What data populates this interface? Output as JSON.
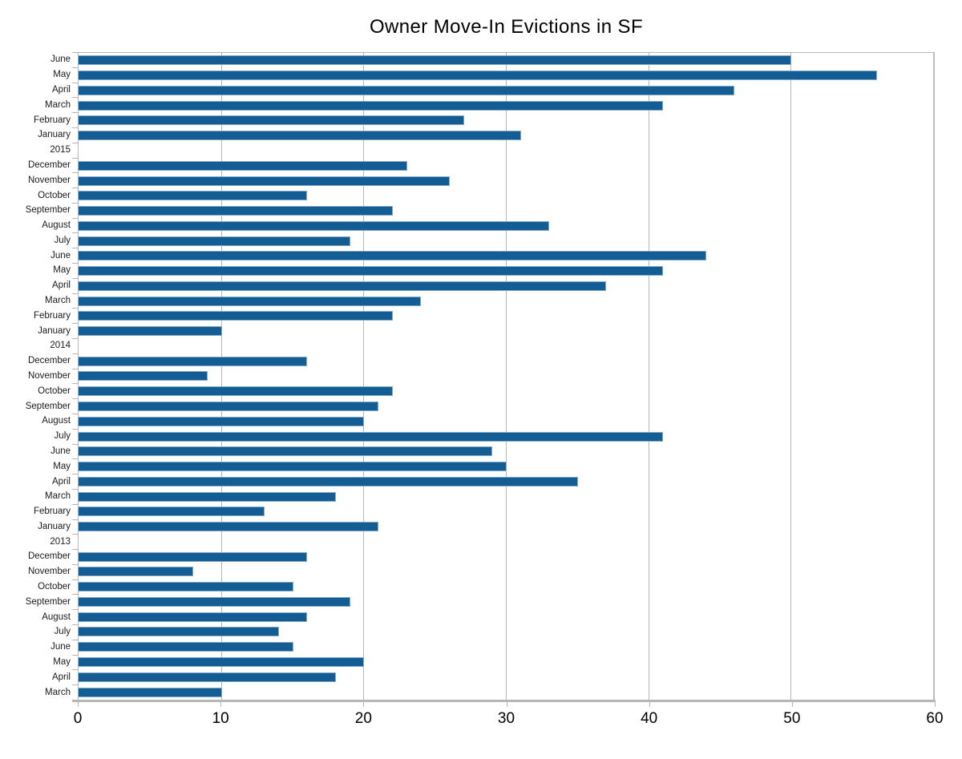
{
  "chart_data": {
    "type": "bar",
    "orientation": "horizontal",
    "title": "Owner Move-In Evictions in SF",
    "xlabel": "",
    "ylabel": "",
    "xlim": [
      0,
      60
    ],
    "x_ticks": [
      0,
      10,
      20,
      30,
      40,
      50,
      60
    ],
    "grid": "vertical gridlines at x ticks",
    "legend": "none",
    "bar_color": "#135d94",
    "bar_border_color": "#7fa8c9",
    "axis_color": "#b6b6b6",
    "categories": [
      "June",
      "May",
      "April",
      "March",
      "February",
      "January",
      "2015",
      "December",
      "November",
      "October",
      "September",
      "August",
      "July",
      "June",
      "May",
      "April",
      "March",
      "February",
      "January",
      "2014",
      "December",
      "November",
      "October",
      "September",
      "August",
      "July",
      "June",
      "May",
      "April",
      "March",
      "February",
      "January",
      "2013",
      "December",
      "November",
      "October",
      "September",
      "August",
      "July",
      "June",
      "May",
      "April",
      "March"
    ],
    "values": [
      50,
      56,
      46,
      41,
      27,
      31,
      null,
      23,
      26,
      16,
      22,
      33,
      19,
      44,
      41,
      37,
      24,
      22,
      10,
      null,
      16,
      9,
      22,
      21,
      20,
      41,
      29,
      30,
      35,
      18,
      13,
      21,
      null,
      16,
      8,
      15,
      19,
      16,
      14,
      15,
      20,
      18,
      10
    ]
  }
}
